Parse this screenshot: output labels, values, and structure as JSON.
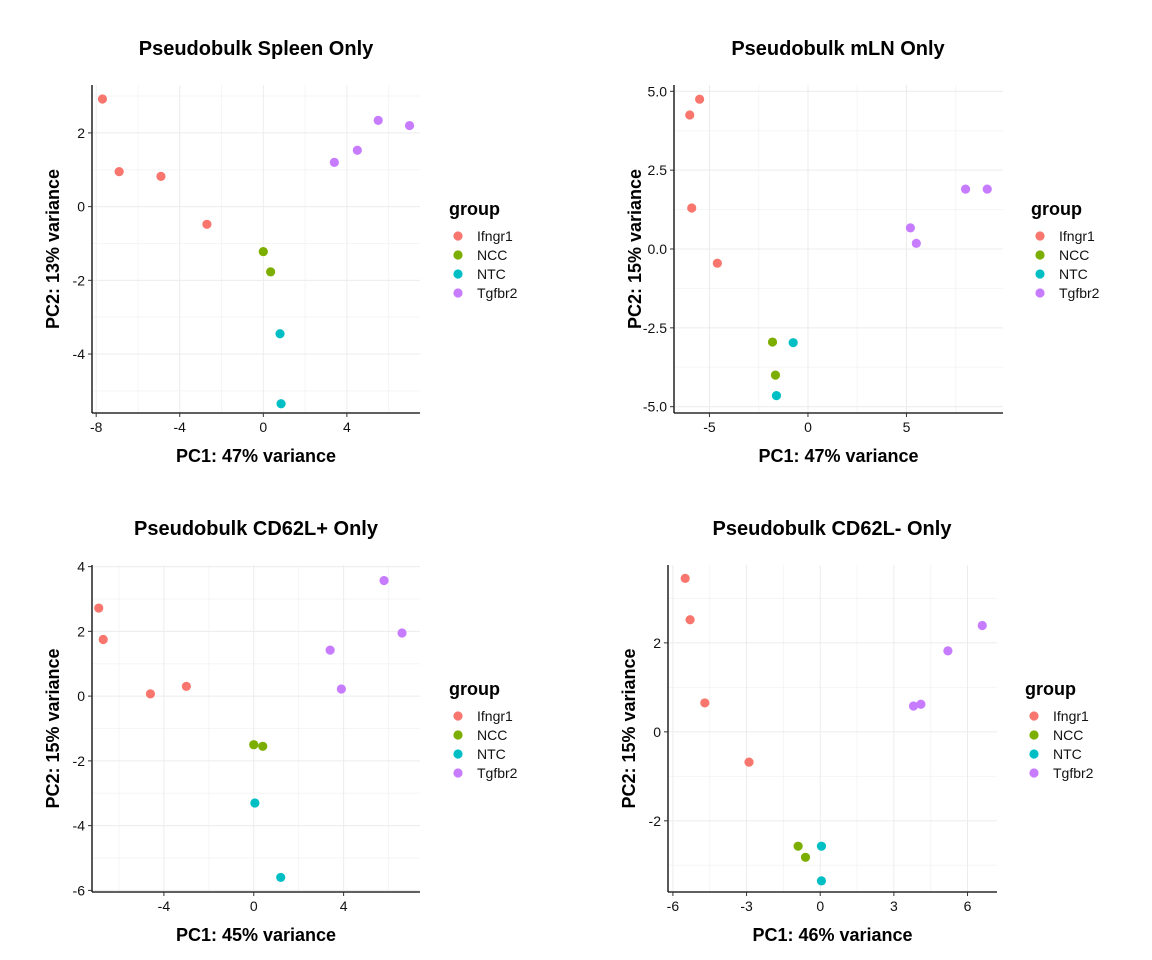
{
  "legend": {
    "title": "group",
    "entries": [
      {
        "label": "Ifngr1",
        "color": "#F8766D"
      },
      {
        "label": "NCC",
        "color": "#7CAE00"
      },
      {
        "label": "NTC",
        "color": "#00BFC4"
      },
      {
        "label": "Tgfbr2",
        "color": "#C77CFF"
      }
    ]
  },
  "chart_data": [
    {
      "type": "scatter",
      "title": "Pseudobulk Spleen Only",
      "xlabel": "PC1: 47% variance",
      "ylabel": "PC2: 13% variance",
      "xlim": [
        -8.2,
        7.5
      ],
      "ylim": [
        -5.6,
        3.3
      ],
      "xticks": [
        -8,
        -4,
        0,
        4
      ],
      "xtick_labels": [
        "-8",
        "-4",
        "0",
        "4"
      ],
      "yticks": [
        -4,
        -2,
        0,
        2
      ],
      "ytick_labels": [
        "-4",
        "-2",
        "0",
        "2"
      ],
      "series": [
        {
          "name": "Ifngr1",
          "points": [
            [
              -7.7,
              2.92
            ],
            [
              -6.9,
              0.95
            ],
            [
              -4.9,
              0.82
            ],
            [
              -2.7,
              -0.48
            ]
          ]
        },
        {
          "name": "NCC",
          "points": [
            [
              0.0,
              -1.22
            ],
            [
              0.35,
              -1.77
            ]
          ]
        },
        {
          "name": "NTC",
          "points": [
            [
              0.8,
              -3.45
            ],
            [
              0.85,
              -5.35
            ]
          ]
        },
        {
          "name": "Tgfbr2",
          "points": [
            [
              3.4,
              1.2
            ],
            [
              4.5,
              1.53
            ],
            [
              5.5,
              2.34
            ],
            [
              7.0,
              2.2
            ]
          ]
        }
      ]
    },
    {
      "type": "scatter",
      "title": "Pseudobulk mLN Only",
      "xlabel": "PC1: 47% variance",
      "ylabel": "PC2: 15% variance",
      "xlim": [
        -6.8,
        9.9
      ],
      "ylim": [
        -5.2,
        5.2
      ],
      "xticks": [
        -5,
        0,
        5
      ],
      "xtick_labels": [
        "-5",
        "0",
        "5"
      ],
      "yticks": [
        -5.0,
        -2.5,
        0.0,
        2.5,
        5.0
      ],
      "ytick_labels": [
        "-5.0",
        "-2.5",
        "0.0",
        "2.5",
        "5.0"
      ],
      "series": [
        {
          "name": "Ifngr1",
          "points": [
            [
              -5.5,
              4.75
            ],
            [
              -6.0,
              4.25
            ],
            [
              -5.9,
              1.3
            ],
            [
              -4.6,
              -0.45
            ]
          ]
        },
        {
          "name": "NCC",
          "points": [
            [
              -1.8,
              -2.95
            ],
            [
              -1.65,
              -4.0
            ]
          ]
        },
        {
          "name": "NTC",
          "points": [
            [
              -0.75,
              -2.97
            ],
            [
              -1.6,
              -4.65
            ]
          ]
        },
        {
          "name": "Tgfbr2",
          "points": [
            [
              5.2,
              0.67
            ],
            [
              5.5,
              0.18
            ],
            [
              8.0,
              1.9
            ],
            [
              9.1,
              1.9
            ]
          ]
        }
      ]
    },
    {
      "type": "scatter",
      "title": "Pseudobulk CD62L+ Only",
      "xlabel": "PC1: 45% variance",
      "ylabel": "PC2: 15% variance",
      "xlim": [
        -7.2,
        7.4
      ],
      "ylim": [
        -6.05,
        4.05
      ],
      "xticks": [
        -4,
        0,
        4
      ],
      "xtick_labels": [
        "-4",
        "0",
        "4"
      ],
      "yticks": [
        -6,
        -4,
        -2,
        0,
        2,
        4
      ],
      "ytick_labels": [
        "-6",
        "-4",
        "-2",
        "0",
        "2",
        "4"
      ],
      "series": [
        {
          "name": "Ifngr1",
          "points": [
            [
              -6.9,
              2.72
            ],
            [
              -6.7,
              1.75
            ],
            [
              -4.6,
              0.07
            ],
            [
              -3.0,
              0.3
            ]
          ]
        },
        {
          "name": "NCC",
          "points": [
            [
              0.0,
              -1.5
            ],
            [
              0.4,
              -1.55
            ]
          ]
        },
        {
          "name": "NTC",
          "points": [
            [
              0.05,
              -3.3
            ],
            [
              1.2,
              -5.6
            ]
          ]
        },
        {
          "name": "Tgfbr2",
          "points": [
            [
              3.4,
              1.42
            ],
            [
              3.9,
              0.22
            ],
            [
              5.8,
              3.57
            ],
            [
              6.6,
              1.95
            ]
          ]
        }
      ]
    },
    {
      "type": "scatter",
      "title": "Pseudobulk CD62L- Only",
      "xlabel": "PC1: 46% variance",
      "ylabel": "PC2: 15% variance",
      "xlim": [
        -6.2,
        7.2
      ],
      "ylim": [
        -3.6,
        3.75
      ],
      "xticks": [
        -6,
        -3,
        0,
        3,
        6
      ],
      "xtick_labels": [
        "-6",
        "-3",
        "0",
        "3",
        "6"
      ],
      "yticks": [
        -2,
        0,
        2
      ],
      "ytick_labels": [
        "-2",
        "0",
        "2"
      ],
      "series": [
        {
          "name": "Ifngr1",
          "points": [
            [
              -5.5,
              3.45
            ],
            [
              -5.3,
              2.52
            ],
            [
              -4.7,
              0.65
            ],
            [
              -2.9,
              -0.68
            ]
          ]
        },
        {
          "name": "NCC",
          "points": [
            [
              -0.9,
              -2.57
            ],
            [
              -0.6,
              -2.82
            ]
          ]
        },
        {
          "name": "NTC",
          "points": [
            [
              0.05,
              -2.57
            ],
            [
              0.05,
              -3.35
            ]
          ]
        },
        {
          "name": "Tgfbr2",
          "points": [
            [
              3.8,
              0.58
            ],
            [
              4.1,
              0.62
            ],
            [
              5.2,
              1.82
            ],
            [
              6.6,
              2.39
            ]
          ]
        }
      ]
    }
  ]
}
